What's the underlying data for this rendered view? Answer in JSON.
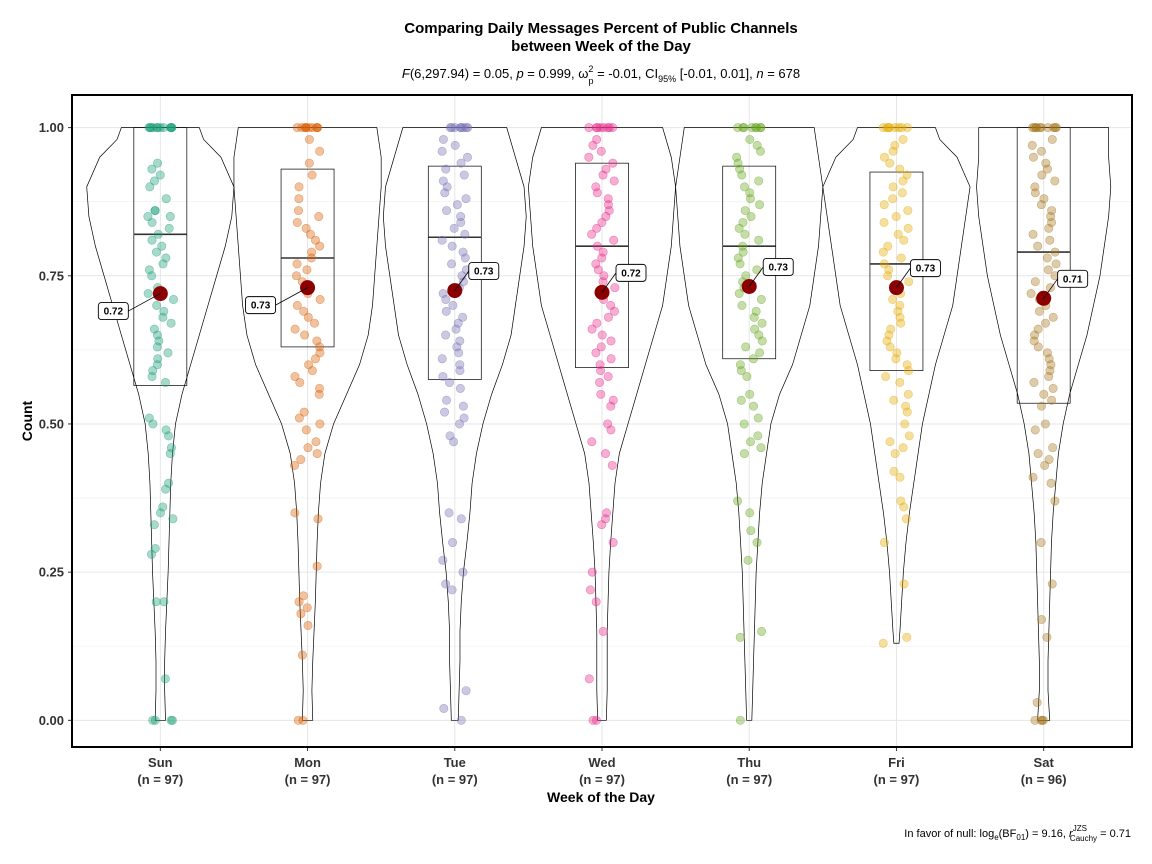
{
  "chart_data": {
    "type": "violin",
    "title_line1": "Comparing Daily Messages Percent of Public Channels",
    "title_line2": "between Week of the Day",
    "subtitle": {
      "stat_name": "F",
      "stat_body": "(6,297.94) = 0.05, ",
      "p_name": "p",
      "p_body": " = 0.999, ω",
      "omega_sub": "p",
      "omega_sup": "2",
      "omega_body": " = -0.01, CI",
      "ci_sub": "95%",
      "ci_body": " [-0.01, 0.01], ",
      "n_name": "n",
      "n_body": " = 678"
    },
    "xlabel": "Week of the Day",
    "ylabel": "Count",
    "ylim": [
      -0.045,
      1.055
    ],
    "yticks": [
      0.0,
      0.25,
      0.5,
      0.75,
      1.0
    ],
    "ytick_labels": [
      "0.00",
      "0.25",
      "0.50",
      "0.75",
      "1.00"
    ],
    "caption": {
      "prefix": "In favor of null: log",
      "log_sub": "e",
      "mid": "(BF",
      "bf_sub": "01",
      "mid2": ") = 9.16, ",
      "r_name": "r",
      "r_sup": "JZS",
      "r_sub": "Cauchy",
      "suffix": " = 0.71"
    },
    "mean_color": "#8B0000",
    "groups": [
      {
        "name": "Sun",
        "n_label": "(n = 97)",
        "color": "#1B9E77",
        "median": 0.82,
        "q1": 0.565,
        "q3": 1.0,
        "mean": 0.72,
        "mean_label": "0.72",
        "label_side": "left",
        "violin": [
          [
            0.0,
            0.012
          ],
          [
            0.05,
            0.01
          ],
          [
            0.1,
            0.01
          ],
          [
            0.15,
            0.012
          ],
          [
            0.2,
            0.015
          ],
          [
            0.25,
            0.018
          ],
          [
            0.3,
            0.02
          ],
          [
            0.35,
            0.022
          ],
          [
            0.4,
            0.024
          ],
          [
            0.45,
            0.028
          ],
          [
            0.5,
            0.035
          ],
          [
            0.55,
            0.05
          ],
          [
            0.6,
            0.07
          ],
          [
            0.65,
            0.09
          ],
          [
            0.7,
            0.11
          ],
          [
            0.75,
            0.13
          ],
          [
            0.8,
            0.15
          ],
          [
            0.85,
            0.165
          ],
          [
            0.9,
            0.17
          ],
          [
            0.95,
            0.14
          ],
          [
            0.98,
            0.1
          ],
          [
            1.0,
            0.09
          ]
        ],
        "points": [
          1,
          1,
          1,
          1,
          1,
          1,
          1,
          1,
          1,
          1,
          1,
          1,
          0.94,
          0.93,
          0.92,
          0.91,
          0.9,
          0.88,
          0.86,
          0.86,
          0.85,
          0.85,
          0.84,
          0.83,
          0.82,
          0.81,
          0.8,
          0.79,
          0.78,
          0.77,
          0.76,
          0.75,
          0.73,
          0.72,
          0.71,
          0.7,
          0.69,
          0.68,
          0.67,
          0.66,
          0.65,
          0.64,
          0.63,
          0.62,
          0.61,
          0.6,
          0.59,
          0.58,
          0.57,
          0.51,
          0.5,
          0.49,
          0.48,
          0.46,
          0.45,
          0.4,
          0.39,
          0.36,
          0.35,
          0.34,
          0.33,
          0.29,
          0.28,
          0.2,
          0.2,
          0.07,
          0,
          0,
          0,
          0
        ]
      },
      {
        "name": "Mon",
        "n_label": "(n = 97)",
        "color": "#D95F02",
        "median": 0.78,
        "q1": 0.63,
        "q3": 0.93,
        "mean": 0.73,
        "mean_label": "0.73",
        "label_side": "left",
        "violin": [
          [
            0.0,
            0.012
          ],
          [
            0.05,
            0.01
          ],
          [
            0.1,
            0.012
          ],
          [
            0.15,
            0.015
          ],
          [
            0.2,
            0.018
          ],
          [
            0.25,
            0.02
          ],
          [
            0.3,
            0.022
          ],
          [
            0.35,
            0.025
          ],
          [
            0.4,
            0.03
          ],
          [
            0.45,
            0.04
          ],
          [
            0.5,
            0.06
          ],
          [
            0.55,
            0.09
          ],
          [
            0.6,
            0.12
          ],
          [
            0.65,
            0.14
          ],
          [
            0.7,
            0.15
          ],
          [
            0.75,
            0.155
          ],
          [
            0.8,
            0.16
          ],
          [
            0.85,
            0.165
          ],
          [
            0.9,
            0.17
          ],
          [
            0.95,
            0.17
          ],
          [
            1.0,
            0.16
          ]
        ],
        "points": [
          1,
          1,
          1,
          1,
          1,
          1,
          1,
          1,
          1,
          1,
          0.98,
          0.96,
          0.94,
          0.92,
          0.9,
          0.88,
          0.86,
          0.85,
          0.84,
          0.83,
          0.82,
          0.81,
          0.8,
          0.79,
          0.78,
          0.77,
          0.76,
          0.75,
          0.74,
          0.73,
          0.72,
          0.71,
          0.7,
          0.69,
          0.68,
          0.67,
          0.66,
          0.65,
          0.64,
          0.63,
          0.62,
          0.61,
          0.6,
          0.59,
          0.58,
          0.57,
          0.56,
          0.55,
          0.52,
          0.51,
          0.5,
          0.49,
          0.47,
          0.46,
          0.45,
          0.44,
          0.43,
          0.35,
          0.34,
          0.26,
          0.21,
          0.2,
          0.19,
          0.18,
          0.16,
          0.11,
          0,
          0
        ]
      },
      {
        "name": "Tue",
        "n_label": "(n = 97)",
        "color": "#7570B3",
        "median": 0.815,
        "q1": 0.575,
        "q3": 0.935,
        "mean": 0.725,
        "mean_label": "0.73",
        "label_side": "right",
        "violin": [
          [
            0.0,
            0.008
          ],
          [
            0.05,
            0.01
          ],
          [
            0.1,
            0.012
          ],
          [
            0.15,
            0.012
          ],
          [
            0.2,
            0.015
          ],
          [
            0.25,
            0.02
          ],
          [
            0.3,
            0.028
          ],
          [
            0.35,
            0.035
          ],
          [
            0.4,
            0.04
          ],
          [
            0.45,
            0.05
          ],
          [
            0.5,
            0.065
          ],
          [
            0.55,
            0.085
          ],
          [
            0.6,
            0.11
          ],
          [
            0.65,
            0.13
          ],
          [
            0.7,
            0.14
          ],
          [
            0.75,
            0.15
          ],
          [
            0.8,
            0.16
          ],
          [
            0.85,
            0.165
          ],
          [
            0.9,
            0.16
          ],
          [
            0.95,
            0.14
          ],
          [
            1.0,
            0.12
          ]
        ],
        "points": [
          1,
          1,
          1,
          1,
          1,
          1,
          1,
          1,
          0.98,
          0.97,
          0.96,
          0.95,
          0.94,
          0.93,
          0.92,
          0.91,
          0.9,
          0.89,
          0.88,
          0.87,
          0.86,
          0.85,
          0.84,
          0.83,
          0.82,
          0.81,
          0.8,
          0.79,
          0.78,
          0.77,
          0.76,
          0.75,
          0.74,
          0.73,
          0.72,
          0.71,
          0.7,
          0.69,
          0.68,
          0.67,
          0.66,
          0.65,
          0.64,
          0.63,
          0.62,
          0.61,
          0.6,
          0.59,
          0.58,
          0.57,
          0.56,
          0.54,
          0.53,
          0.52,
          0.51,
          0.5,
          0.48,
          0.47,
          0.35,
          0.34,
          0.3,
          0.27,
          0.25,
          0.23,
          0.22,
          0.05,
          0.02,
          0
        ]
      },
      {
        "name": "Wed",
        "n_label": "(n = 97)",
        "color": "#E7298A",
        "median": 0.8,
        "q1": 0.595,
        "q3": 0.94,
        "mean": 0.722,
        "mean_label": "0.72",
        "label_side": "right",
        "violin": [
          [
            0.0,
            0.01
          ],
          [
            0.05,
            0.012
          ],
          [
            0.1,
            0.012
          ],
          [
            0.15,
            0.012
          ],
          [
            0.2,
            0.014
          ],
          [
            0.25,
            0.016
          ],
          [
            0.3,
            0.02
          ],
          [
            0.35,
            0.025
          ],
          [
            0.4,
            0.03
          ],
          [
            0.45,
            0.04
          ],
          [
            0.5,
            0.06
          ],
          [
            0.55,
            0.08
          ],
          [
            0.6,
            0.1
          ],
          [
            0.65,
            0.12
          ],
          [
            0.7,
            0.14
          ],
          [
            0.75,
            0.15
          ],
          [
            0.8,
            0.16
          ],
          [
            0.85,
            0.165
          ],
          [
            0.9,
            0.17
          ],
          [
            0.95,
            0.16
          ],
          [
            1.0,
            0.14
          ]
        ],
        "points": [
          1,
          1,
          1,
          1,
          1,
          1,
          1,
          1,
          0.98,
          0.97,
          0.96,
          0.95,
          0.94,
          0.93,
          0.92,
          0.91,
          0.9,
          0.89,
          0.88,
          0.87,
          0.86,
          0.85,
          0.84,
          0.83,
          0.82,
          0.81,
          0.8,
          0.79,
          0.78,
          0.77,
          0.76,
          0.75,
          0.74,
          0.73,
          0.72,
          0.71,
          0.7,
          0.69,
          0.68,
          0.67,
          0.66,
          0.65,
          0.64,
          0.63,
          0.62,
          0.61,
          0.6,
          0.59,
          0.58,
          0.57,
          0.55,
          0.54,
          0.53,
          0.5,
          0.49,
          0.47,
          0.45,
          0.43,
          0.35,
          0.34,
          0.33,
          0.3,
          0.25,
          0.22,
          0.2,
          0.15,
          0.07,
          0,
          0
        ]
      },
      {
        "name": "Thu",
        "n_label": "(n = 97)",
        "color": "#66A61E",
        "median": 0.8,
        "q1": 0.61,
        "q3": 0.935,
        "mean": 0.732,
        "mean_label": "0.73",
        "label_side": "right",
        "violin": [
          [
            0.0,
            0.006
          ],
          [
            0.05,
            0.008
          ],
          [
            0.1,
            0.01
          ],
          [
            0.15,
            0.012
          ],
          [
            0.2,
            0.014
          ],
          [
            0.25,
            0.016
          ],
          [
            0.3,
            0.02
          ],
          [
            0.35,
            0.024
          ],
          [
            0.4,
            0.03
          ],
          [
            0.45,
            0.04
          ],
          [
            0.5,
            0.05
          ],
          [
            0.55,
            0.07
          ],
          [
            0.6,
            0.1
          ],
          [
            0.65,
            0.12
          ],
          [
            0.7,
            0.14
          ],
          [
            0.75,
            0.15
          ],
          [
            0.8,
            0.16
          ],
          [
            0.85,
            0.165
          ],
          [
            0.9,
            0.17
          ],
          [
            0.95,
            0.16
          ],
          [
            1.0,
            0.15
          ]
        ],
        "points": [
          1,
          1,
          1,
          1,
          1,
          1,
          1,
          1,
          0.98,
          0.97,
          0.96,
          0.95,
          0.94,
          0.93,
          0.92,
          0.91,
          0.9,
          0.89,
          0.88,
          0.87,
          0.86,
          0.85,
          0.84,
          0.83,
          0.82,
          0.81,
          0.8,
          0.79,
          0.78,
          0.77,
          0.76,
          0.75,
          0.74,
          0.73,
          0.72,
          0.71,
          0.7,
          0.69,
          0.68,
          0.67,
          0.66,
          0.65,
          0.64,
          0.63,
          0.62,
          0.61,
          0.6,
          0.59,
          0.58,
          0.55,
          0.54,
          0.53,
          0.51,
          0.5,
          0.48,
          0.47,
          0.46,
          0.45,
          0.37,
          0.35,
          0.32,
          0.3,
          0.27,
          0.15,
          0.14,
          0
        ]
      },
      {
        "name": "Fri",
        "n_label": "(n = 97)",
        "color": "#E6AB02",
        "median": 0.77,
        "q1": 0.59,
        "q3": 0.925,
        "mean": 0.73,
        "mean_label": "0.73",
        "label_side": "right",
        "violin": [
          [
            0.13,
            0.006
          ],
          [
            0.15,
            0.008
          ],
          [
            0.2,
            0.012
          ],
          [
            0.25,
            0.016
          ],
          [
            0.3,
            0.022
          ],
          [
            0.35,
            0.03
          ],
          [
            0.4,
            0.04
          ],
          [
            0.45,
            0.05
          ],
          [
            0.5,
            0.06
          ],
          [
            0.55,
            0.075
          ],
          [
            0.6,
            0.09
          ],
          [
            0.65,
            0.11
          ],
          [
            0.7,
            0.13
          ],
          [
            0.75,
            0.14
          ],
          [
            0.8,
            0.15
          ],
          [
            0.85,
            0.16
          ],
          [
            0.9,
            0.17
          ],
          [
            0.95,
            0.14
          ],
          [
            0.98,
            0.1
          ],
          [
            1.0,
            0.09
          ]
        ],
        "points": [
          1,
          1,
          1,
          1,
          1,
          1,
          1,
          1,
          0.98,
          0.97,
          0.96,
          0.95,
          0.94,
          0.93,
          0.92,
          0.91,
          0.9,
          0.89,
          0.88,
          0.87,
          0.86,
          0.85,
          0.84,
          0.83,
          0.82,
          0.81,
          0.8,
          0.79,
          0.78,
          0.77,
          0.76,
          0.75,
          0.74,
          0.73,
          0.72,
          0.71,
          0.7,
          0.69,
          0.68,
          0.67,
          0.66,
          0.65,
          0.64,
          0.63,
          0.62,
          0.61,
          0.6,
          0.59,
          0.58,
          0.57,
          0.55,
          0.54,
          0.53,
          0.52,
          0.5,
          0.48,
          0.47,
          0.46,
          0.45,
          0.42,
          0.41,
          0.37,
          0.36,
          0.34,
          0.3,
          0.23,
          0.14,
          0.13
        ]
      },
      {
        "name": "Sat",
        "n_label": "(n = 96)",
        "color": "#A6761D",
        "median": 0.79,
        "q1": 0.535,
        "q3": 1.0,
        "mean": 0.712,
        "mean_label": "0.71",
        "label_side": "right",
        "violin": [
          [
            0.0,
            0.014
          ],
          [
            0.05,
            0.01
          ],
          [
            0.1,
            0.01
          ],
          [
            0.15,
            0.012
          ],
          [
            0.2,
            0.014
          ],
          [
            0.25,
            0.016
          ],
          [
            0.3,
            0.018
          ],
          [
            0.35,
            0.022
          ],
          [
            0.4,
            0.028
          ],
          [
            0.45,
            0.034
          ],
          [
            0.5,
            0.045
          ],
          [
            0.55,
            0.06
          ],
          [
            0.6,
            0.08
          ],
          [
            0.65,
            0.1
          ],
          [
            0.7,
            0.115
          ],
          [
            0.75,
            0.13
          ],
          [
            0.8,
            0.14
          ],
          [
            0.85,
            0.15
          ],
          [
            0.9,
            0.155
          ],
          [
            0.95,
            0.15
          ],
          [
            1.0,
            0.15
          ]
        ],
        "points": [
          1,
          1,
          1,
          1,
          1,
          1,
          1,
          1,
          1,
          1,
          0.98,
          0.97,
          0.96,
          0.95,
          0.94,
          0.93,
          0.92,
          0.91,
          0.9,
          0.89,
          0.88,
          0.87,
          0.86,
          0.85,
          0.84,
          0.83,
          0.82,
          0.81,
          0.8,
          0.79,
          0.78,
          0.77,
          0.76,
          0.75,
          0.74,
          0.73,
          0.72,
          0.71,
          0.7,
          0.69,
          0.68,
          0.67,
          0.66,
          0.65,
          0.64,
          0.63,
          0.62,
          0.61,
          0.6,
          0.59,
          0.58,
          0.57,
          0.56,
          0.55,
          0.54,
          0.53,
          0.5,
          0.49,
          0.46,
          0.45,
          0.44,
          0.43,
          0.41,
          0.4,
          0.37,
          0.3,
          0.23,
          0.17,
          0.14,
          0.03,
          0,
          0,
          0,
          0
        ]
      }
    ]
  }
}
